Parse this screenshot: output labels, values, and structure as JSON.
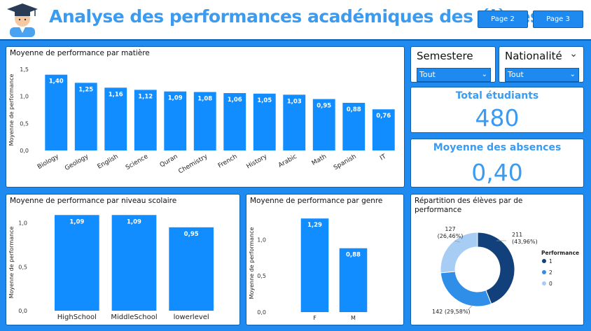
{
  "header": {
    "title": "Analyse des performances académiques des élèves",
    "page2_label": "Page 2",
    "page3_label": "Page 3"
  },
  "slicers": {
    "semestre": {
      "label": "Semestere",
      "value": "Tout"
    },
    "nationalite": {
      "label": "Nationalité",
      "value": "Tout"
    }
  },
  "kpi": {
    "total": {
      "label": "Total étudiants",
      "value": "480"
    },
    "absences": {
      "label": "Moyenne des absences",
      "value": "0,40"
    }
  },
  "colors": {
    "bar": "#118dff",
    "accent": "#3b9bf0",
    "donut_1": "#12407a",
    "donut_2": "#2f8ee8",
    "donut_0": "#a8cdf5"
  },
  "chart_data": [
    {
      "type": "bar",
      "title": "Moyenne de performance par matière",
      "ylabel": "Moyenne de performance",
      "ylim": [
        0,
        1.5
      ],
      "yticks": [
        "0,0",
        "0,5",
        "1,0",
        "1,5"
      ],
      "categories": [
        "Biology",
        "Geology",
        "English",
        "Science",
        "Quran",
        "Chemistry",
        "French",
        "History",
        "Arabic",
        "Math",
        "Spanish",
        "IT"
      ],
      "values": [
        1.4,
        1.25,
        1.16,
        1.12,
        1.09,
        1.08,
        1.06,
        1.05,
        1.03,
        0.95,
        0.88,
        0.76
      ],
      "labels": [
        "1,40",
        "1,25",
        "1,16",
        "1,12",
        "1,09",
        "1,08",
        "1,06",
        "1,05",
        "1,03",
        "0,95",
        "0,88",
        "0,76"
      ]
    },
    {
      "type": "bar",
      "title": "Moyenne de performance par niveau scolaire",
      "ylabel": "Moyenne de performance",
      "ylim": [
        0,
        1.1
      ],
      "yticks": [
        "0,0",
        "0,5",
        "1,0"
      ],
      "categories": [
        "HighSchool",
        "MiddleSchool",
        "lowerlevel"
      ],
      "values": [
        1.09,
        1.09,
        0.95
      ],
      "labels": [
        "1,09",
        "1,09",
        "0,95"
      ]
    },
    {
      "type": "bar",
      "title": "Moyenne de performance par genre",
      "ylabel": "Moyenne de performance",
      "ylim": [
        0,
        1.35
      ],
      "yticks": [
        "0,0",
        "0,5",
        "1,0"
      ],
      "categories": [
        "F",
        "M"
      ],
      "values": [
        1.29,
        0.88
      ],
      "labels": [
        "1,29",
        "0,88"
      ]
    },
    {
      "type": "pie",
      "title": "Répartition des élèves par de performance",
      "legend_title": "Performance",
      "categories": [
        "1",
        "2",
        "0"
      ],
      "values": [
        211,
        142,
        127
      ],
      "labels": [
        "211\n(43,96%)",
        "142 (29,58%)",
        "127\n(26,46%)"
      ]
    }
  ]
}
